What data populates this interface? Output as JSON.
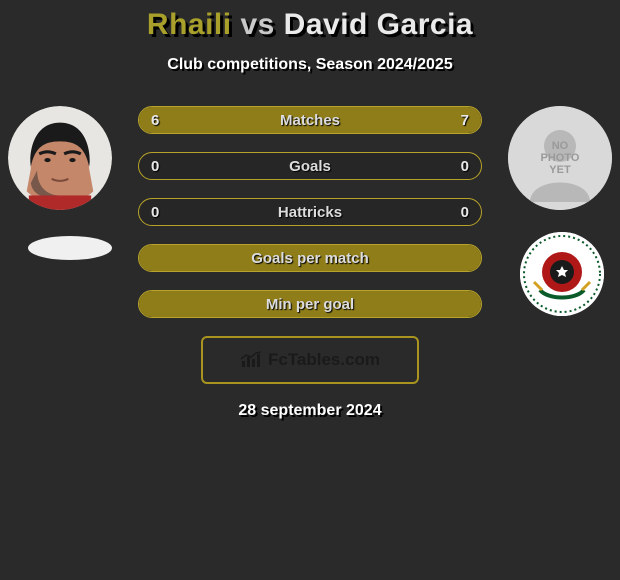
{
  "title": {
    "player1": "Rhaili",
    "vs": "vs",
    "player2": "David Garcia"
  },
  "subtitle": "Club competitions, Season 2024/2025",
  "colors": {
    "accent": "#a8941f",
    "accent_fill": "#8f7d1a",
    "accent_border": "#b8a32a",
    "neutral_text": "#d6d6d6",
    "title_p1": "#a8a02a",
    "title_p2": "#eaeaea",
    "brand_border": "#a8941f",
    "brand_text": "#1a1a1a"
  },
  "rows": [
    {
      "label": "Matches",
      "left": "6",
      "right": "7",
      "left_pct": 46,
      "right_pct": 54,
      "mode": "split"
    },
    {
      "label": "Goals",
      "left": "0",
      "right": "0",
      "left_pct": 0,
      "right_pct": 0,
      "mode": "split"
    },
    {
      "label": "Hattricks",
      "left": "0",
      "right": "0",
      "left_pct": 0,
      "right_pct": 0,
      "mode": "split"
    },
    {
      "label": "Goals per match",
      "left": "",
      "right": "",
      "mode": "full"
    },
    {
      "label": "Min per goal",
      "left": "",
      "right": "",
      "mode": "full"
    }
  ],
  "brand": "FcTables.com",
  "date": "28 september 2024",
  "right_placeholder": "NO\nPHOTO\nYET"
}
